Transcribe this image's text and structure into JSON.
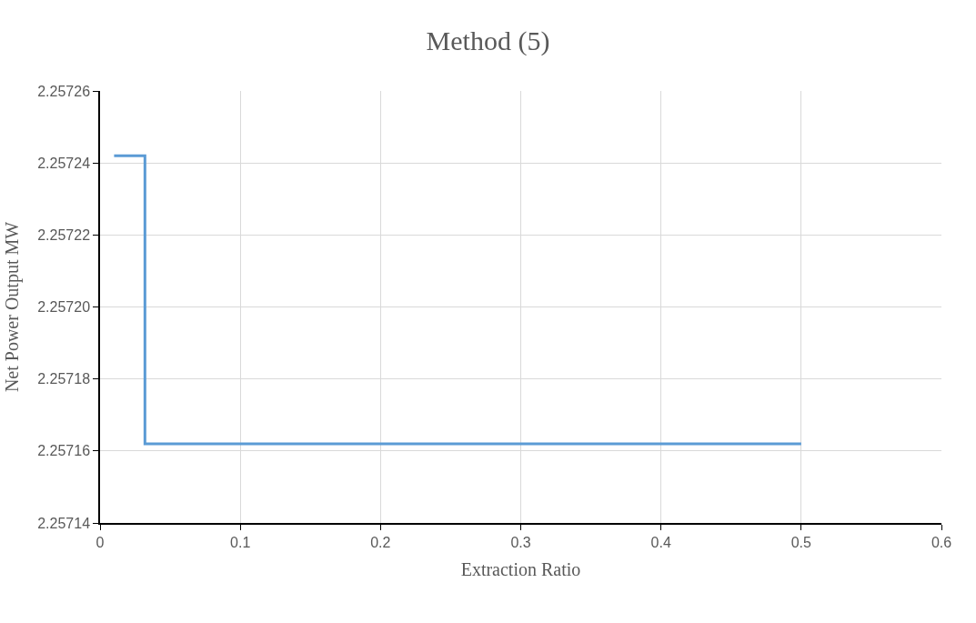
{
  "chart_data": {
    "type": "line",
    "title": "Method (5)",
    "xlabel": "Extraction Ratio",
    "ylabel": "Net Power Output MW",
    "series": [
      {
        "color": "#5b9bd5",
        "x": [
          0.01,
          0.032,
          0.032,
          0.5
        ],
        "values": [
          2.257242,
          2.257242,
          2.257162,
          2.257162
        ]
      }
    ],
    "xlim": [
      0,
      0.6
    ],
    "xticks": [
      0,
      0.1,
      0.2,
      0.3,
      0.4,
      0.5,
      0.6
    ],
    "ylim": [
      2.25714,
      2.25726
    ],
    "yticks": [
      {
        "value": 2.25714,
        "label": "2.25714"
      },
      {
        "value": 2.25716,
        "label": "2.25716"
      },
      {
        "value": 2.25718,
        "label": "2.25718"
      },
      {
        "value": 2.2572,
        "label": "2.25720"
      },
      {
        "value": 2.25722,
        "label": "2.25722"
      },
      {
        "value": 2.25724,
        "label": "2.25724"
      },
      {
        "value": 2.25726,
        "label": "2.25726"
      }
    ],
    "grid": true,
    "marker": "none",
    "line_style": "solid"
  }
}
